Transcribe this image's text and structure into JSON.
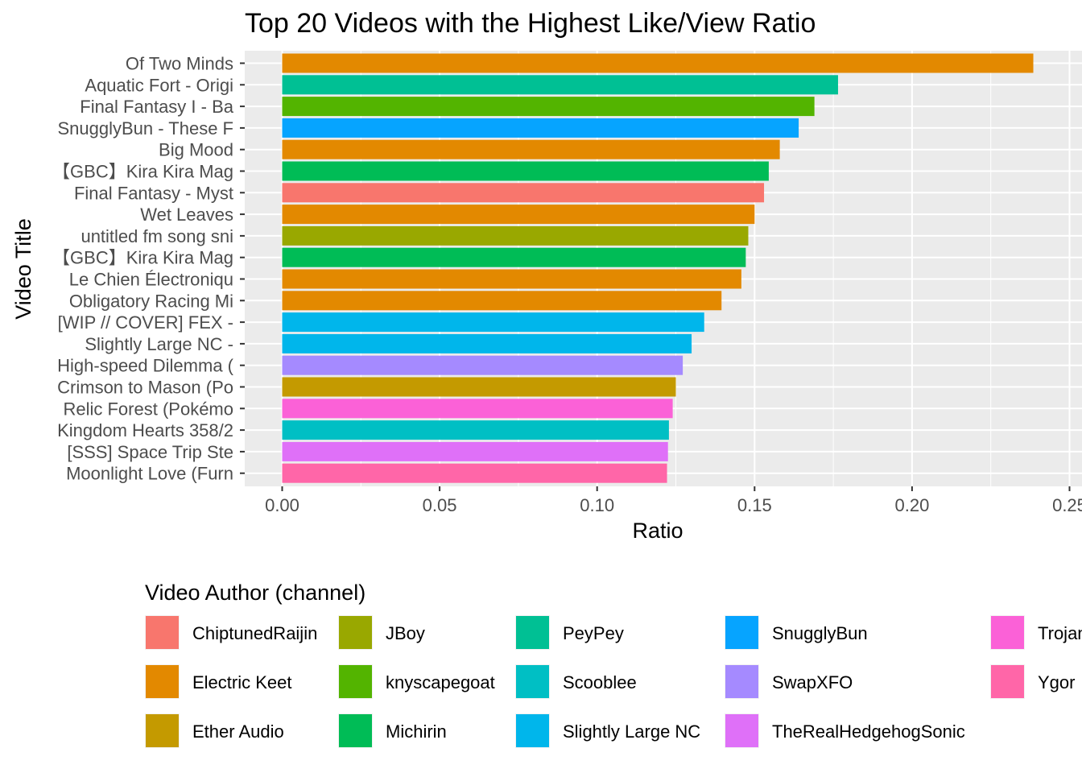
{
  "chart_data": {
    "type": "bar",
    "orientation": "horizontal",
    "title": "Top 20 Videos with the Highest Like/View Ratio",
    "xlabel": "Ratio",
    "ylabel": "Video Title",
    "xlim": [
      0.0,
      0.25
    ],
    "x_ticks": [
      0.0,
      0.05,
      0.1,
      0.15,
      0.2,
      0.25
    ],
    "x_tick_labels": [
      "0.00",
      "0.05",
      "0.10",
      "0.15",
      "0.20",
      "0.25"
    ],
    "grid": true,
    "legend": {
      "title": "Video Author (channel)",
      "position": "bottom",
      "entries": [
        {
          "name": "ChiptunedRaijin",
          "color": "#F8766D"
        },
        {
          "name": "Electric Keet",
          "color": "#E38900"
        },
        {
          "name": "Ether Audio",
          "color": "#C49A00"
        },
        {
          "name": "JBoy",
          "color": "#99A800"
        },
        {
          "name": "knyscapegoat",
          "color": "#53B400"
        },
        {
          "name": "Michirin",
          "color": "#00BC56"
        },
        {
          "name": "PeyPey",
          "color": "#00C094"
        },
        {
          "name": "Scooblee",
          "color": "#00BFC4"
        },
        {
          "name": "Slightly Large NC",
          "color": "#00B6EB"
        },
        {
          "name": "SnugglyBun",
          "color": "#06A4FF"
        },
        {
          "name": "SwapXFO",
          "color": "#A58AFF"
        },
        {
          "name": "TheRealHedgehogSonic",
          "color": "#DF70F8"
        },
        {
          "name": "Trojan",
          "color": "#FB61D7"
        },
        {
          "name": "Ygor",
          "color": "#FF66A8"
        }
      ]
    },
    "bars": [
      {
        "title": "Of Two Minds",
        "value": 0.2385,
        "channel": "Electric Keet"
      },
      {
        "title": "Aquatic Fort - Origi",
        "value": 0.1765,
        "channel": "PeyPey"
      },
      {
        "title": "Final Fantasy I - Ba",
        "value": 0.169,
        "channel": "knyscapegoat"
      },
      {
        "title": "SnugglyBun - These F",
        "value": 0.164,
        "channel": "SnugglyBun"
      },
      {
        "title": "Big Mood",
        "value": 0.158,
        "channel": "Electric Keet"
      },
      {
        "title": "【GBC】Kira Kira Mag",
        "value": 0.1545,
        "channel": "Michirin"
      },
      {
        "title": "Final Fantasy - Myst",
        "value": 0.153,
        "channel": "ChiptunedRaijin"
      },
      {
        "title": "Wet Leaves",
        "value": 0.15,
        "channel": "Electric Keet"
      },
      {
        "title": "untitled fm song sni",
        "value": 0.148,
        "channel": "JBoy"
      },
      {
        "title": "【GBC】Kira Kira Mag",
        "value": 0.1472,
        "channel": "Michirin"
      },
      {
        "title": "Le Chien Électroniqu",
        "value": 0.1458,
        "channel": "Electric Keet"
      },
      {
        "title": "Obligatory Racing Mi",
        "value": 0.1395,
        "channel": "Electric Keet"
      },
      {
        "title": "[WIP // COVER] FEX -",
        "value": 0.134,
        "channel": "Slightly Large NC"
      },
      {
        "title": "Slightly Large NC - ",
        "value": 0.13,
        "channel": "Slightly Large NC"
      },
      {
        "title": "High-speed Dilemma (",
        "value": 0.1272,
        "channel": "SwapXFO"
      },
      {
        "title": "Crimson to Mason (Po",
        "value": 0.125,
        "channel": "Ether Audio"
      },
      {
        "title": "Relic Forest (Pokémo",
        "value": 0.124,
        "channel": "Trojan"
      },
      {
        "title": "Kingdom Hearts 358/2",
        "value": 0.1228,
        "channel": "Scooblee"
      },
      {
        "title": "[SSS] Space Trip Ste",
        "value": 0.1225,
        "channel": "TheRealHedgehogSonic"
      },
      {
        "title": "Moonlight Love (Furn",
        "value": 0.1222,
        "channel": "Ygor"
      }
    ]
  }
}
